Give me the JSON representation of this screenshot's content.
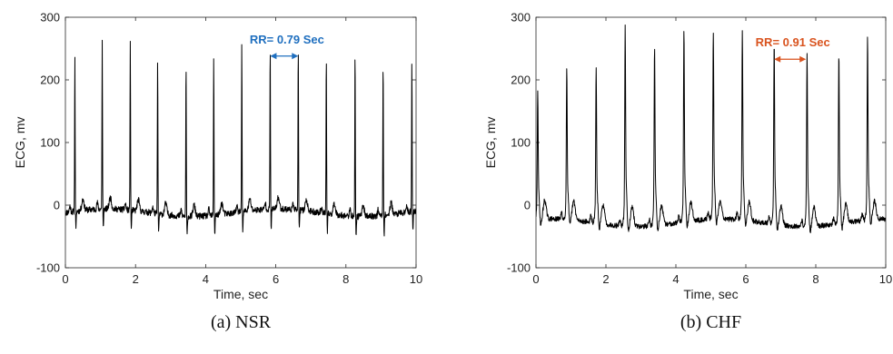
{
  "chart_data": [
    {
      "type": "line",
      "caption": "(a) NSR",
      "xlabel": "Time, sec",
      "ylabel": "ECG, mv",
      "xlim": [
        0,
        10
      ],
      "ylim": [
        -100,
        300
      ],
      "x_ticks": [
        "0",
        "2",
        "4",
        "6",
        "8",
        "10"
      ],
      "y_ticks": [
        "300",
        "200",
        "100",
        "0",
        "-100"
      ],
      "baseline": -12,
      "r_peaks": [
        {
          "t": 0.27,
          "v": 235
        },
        {
          "t": 1.05,
          "v": 256
        },
        {
          "t": 1.85,
          "v": 258
        },
        {
          "t": 2.63,
          "v": 238
        },
        {
          "t": 3.44,
          "v": 232
        },
        {
          "t": 4.23,
          "v": 243
        },
        {
          "t": 5.03,
          "v": 255
        },
        {
          "t": 5.84,
          "v": 248
        },
        {
          "t": 6.64,
          "v": 250
        },
        {
          "t": 7.44,
          "v": 244
        },
        {
          "t": 8.26,
          "v": 252
        },
        {
          "t": 9.06,
          "v": 238
        },
        {
          "t": 9.88,
          "v": 233
        }
      ],
      "annotation": {
        "text": "RR= 0.79 Sec",
        "from": 5.84,
        "to": 6.64,
        "y": 238,
        "color": "#1f6fbf"
      }
    },
    {
      "type": "line",
      "caption": "(b) CHF",
      "xlabel": "Time, sec",
      "ylabel": "ECG, mv",
      "xlim": [
        0,
        10
      ],
      "ylim": [
        -100,
        300
      ],
      "x_ticks": [
        "0",
        "2",
        "4",
        "6",
        "8",
        "10"
      ],
      "y_ticks": [
        "300",
        "200",
        "100",
        "0",
        "-100"
      ],
      "baseline": -28,
      "r_peaks": [
        {
          "t": 0.05,
          "v": 178
        },
        {
          "t": 0.88,
          "v": 213
        },
        {
          "t": 1.72,
          "v": 218
        },
        {
          "t": 2.55,
          "v": 287
        },
        {
          "t": 3.39,
          "v": 258
        },
        {
          "t": 4.23,
          "v": 277
        },
        {
          "t": 5.07,
          "v": 270
        },
        {
          "t": 5.9,
          "v": 273
        },
        {
          "t": 6.81,
          "v": 262
        },
        {
          "t": 7.75,
          "v": 248
        },
        {
          "t": 8.66,
          "v": 245
        },
        {
          "t": 9.48,
          "v": 262
        }
      ],
      "annotation": {
        "text": "RR= 0.91 Sec",
        "from": 6.81,
        "to": 7.72,
        "y": 233,
        "color": "#d9531e"
      }
    }
  ]
}
